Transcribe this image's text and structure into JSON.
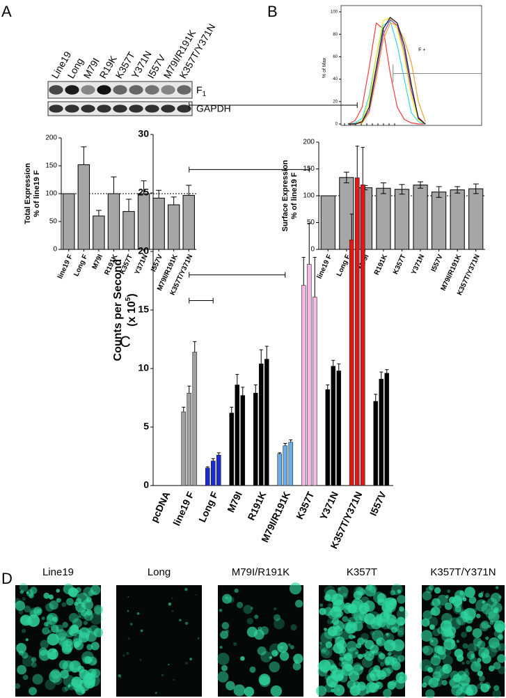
{
  "panel_labels": [
    "A",
    "B",
    "C",
    "D"
  ],
  "blot": {
    "lanes": [
      "Line19",
      "Long",
      "M79I",
      "R19K",
      "K357T",
      "Y371N",
      "I557V",
      "M79I/R191K",
      "K357T/Y371N"
    ],
    "bands": [
      {
        "label": "F",
        "sub": "1"
      },
      {
        "label": "GAPDH"
      }
    ]
  },
  "images": {
    "labels": [
      "Line19",
      "Long",
      "M79I/R191K",
      "K357T",
      "K357T/Y371N"
    ]
  },
  "chart_data": [
    {
      "type": "bar",
      "ylabel": [
        "Total Expression",
        "% of line19 F"
      ],
      "categories": [
        "line19 F",
        "Long F",
        "M79I",
        "R191K",
        "K357T",
        "Y371N",
        "I557V",
        "M79I/R191K",
        "K357T/Y371N"
      ],
      "values": [
        100,
        152,
        60,
        100,
        68,
        100,
        92,
        80,
        97
      ],
      "errors": [
        0,
        32,
        10,
        30,
        22,
        23,
        14,
        14,
        18
      ],
      "error_style": "upper",
      "color": "#a6a6a6",
      "ylim": [
        0,
        200
      ],
      "yticks": [
        0,
        50,
        100,
        150,
        200
      ],
      "reference_line": 100
    },
    {
      "type": "line",
      "ylabel": "% of Max",
      "x": [
        5,
        10,
        15,
        20,
        25,
        30,
        35,
        40,
        45,
        50,
        55,
        60
      ],
      "xlim": [
        0,
        100
      ],
      "ylim": [
        0,
        100
      ],
      "yticks": [
        0,
        20,
        40,
        60,
        80,
        100
      ],
      "series": [
        {
          "color": "#ff3b3b",
          "values": [
            0,
            3,
            15,
            50,
            90,
            85,
            45,
            15,
            4,
            1,
            0,
            0
          ]
        },
        {
          "color": "#33d6e0",
          "values": [
            0,
            1,
            5,
            25,
            60,
            88,
            92,
            70,
            40,
            10,
            2,
            0
          ]
        },
        {
          "color": "#f2e400",
          "values": [
            0,
            0,
            3,
            20,
            60,
            92,
            95,
            85,
            60,
            25,
            4,
            0
          ]
        },
        {
          "color": "#f0a030",
          "values": [
            0,
            0,
            1,
            10,
            40,
            75,
            90,
            88,
            75,
            55,
            20,
            2
          ]
        },
        {
          "color": "#9040c0",
          "values": [
            0,
            0,
            2,
            12,
            45,
            80,
            93,
            88,
            65,
            30,
            6,
            0
          ]
        },
        {
          "color": "#111111",
          "values": [
            0,
            0,
            2,
            15,
            50,
            85,
            95,
            90,
            70,
            35,
            5,
            0
          ]
        }
      ],
      "gate": {
        "label": "F +",
        "y": 45,
        "x": [
          37,
          100
        ],
        "label_x": 55,
        "label_y": 66
      }
    },
    {
      "type": "bar",
      "ylabel": [
        "Surface Expression",
        "% of line19 F"
      ],
      "categories": [
        "line19 F",
        "Long F",
        "M79I",
        "R191K",
        "K357T",
        "Y371N",
        "I557V",
        "M79I/R191K",
        "K357T/Y371N"
      ],
      "values": [
        100,
        134,
        115,
        114,
        112,
        120,
        107,
        111,
        113
      ],
      "errors": [
        0,
        10,
        4,
        10,
        9,
        6,
        10,
        6,
        9
      ],
      "error_style": "both",
      "color": "#a6a6a6",
      "ylim": [
        0,
        200
      ],
      "yticks": [
        0,
        50,
        100,
        150,
        200
      ],
      "reference_line": 100
    },
    {
      "type": "grouped_bar",
      "ylabel": "Counts per Second",
      "ylabel_unit": [
        "(x 10",
        "5",
        ")"
      ],
      "categories": [
        "pcDNA",
        "line19 F",
        "Long F",
        "M79I",
        "R191K",
        "M79I/R191K",
        "K357T",
        "Y371N",
        "K357T/Y371N",
        "I557V"
      ],
      "groups": [
        {
          "color": "#000000",
          "values": [
            0,
            0,
            0
          ],
          "errors": [
            0,
            0,
            0
          ]
        },
        {
          "color": "#a0a0a0",
          "values": [
            6.3,
            7.9,
            11.4
          ],
          "errors": [
            0.4,
            0.6,
            0.9
          ]
        },
        {
          "color": "#1a2bd0",
          "values": [
            1.5,
            2.1,
            2.6
          ],
          "errors": [
            0.1,
            0.2,
            0.2
          ]
        },
        {
          "color": "#000000",
          "values": [
            6.2,
            8.6,
            7.7
          ],
          "errors": [
            0.5,
            0.9,
            0.7
          ]
        },
        {
          "color": "#000000",
          "values": [
            7.9,
            10.4,
            10.8
          ],
          "errors": [
            0.7,
            1.2,
            1.1
          ]
        },
        {
          "color": "#6aaee8",
          "values": [
            2.7,
            3.4,
            3.7
          ],
          "errors": [
            0.1,
            0.2,
            0.2
          ]
        },
        {
          "color": "#f4b8e6",
          "values": [
            17.1,
            18.9,
            16.1
          ],
          "errors": [
            2.4,
            3.5,
            3.4
          ]
        },
        {
          "color": "#000000",
          "values": [
            8.2,
            10.2,
            9.8
          ],
          "errors": [
            0.4,
            0.5,
            0.6
          ]
        },
        {
          "color": "#e01818",
          "values": [
            21,
            26.3,
            25.7
          ],
          "errors": [
            2.2,
            2.7,
            3.2
          ]
        },
        {
          "color": "#000000",
          "values": [
            7.2,
            9.1,
            9.6
          ],
          "errors": [
            0.6,
            0.6,
            0.3
          ]
        }
      ],
      "ylim": [
        0,
        30
      ],
      "yticks": [
        0,
        5,
        10,
        15,
        20,
        25,
        30
      ],
      "brackets": [
        {
          "from": 1,
          "to": 2,
          "y": 15.8
        },
        {
          "from": 1,
          "to": 5,
          "y": 18
        },
        {
          "from": 1,
          "to": 6,
          "y": 27
        },
        {
          "from": 1,
          "to": 8,
          "y": 32.5
        }
      ]
    }
  ]
}
